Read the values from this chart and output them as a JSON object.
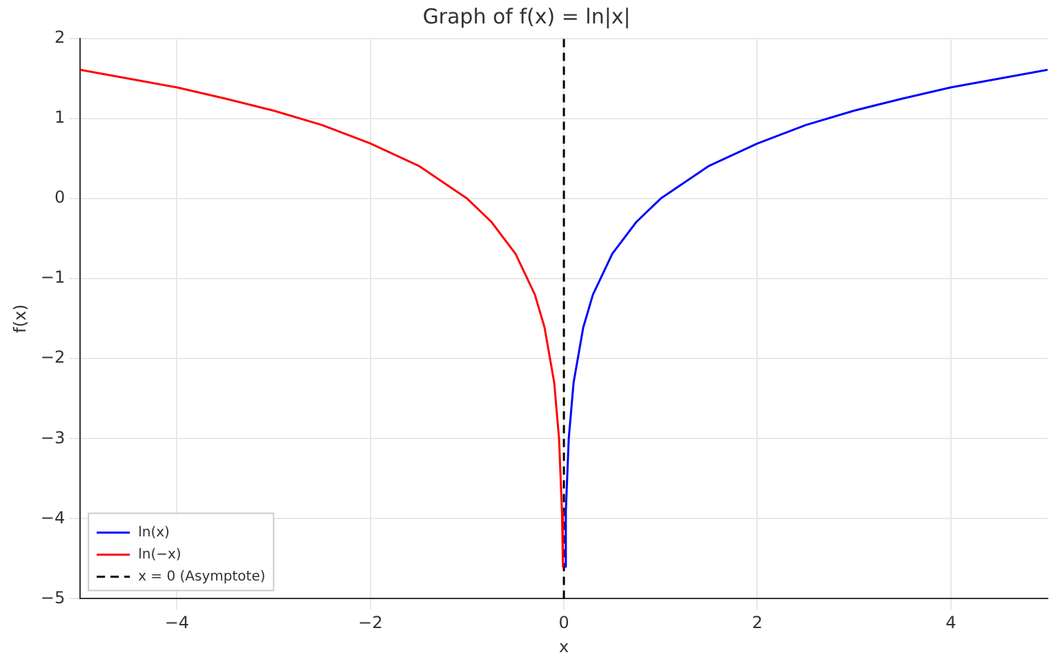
{
  "chart_data": {
    "type": "line",
    "title": "Graph of f(x) = ln|x|",
    "xlabel": "x",
    "ylabel": "f(x)",
    "xlim": [
      -5,
      5
    ],
    "xticks": [
      -4,
      -2,
      0,
      2,
      4
    ],
    "ylim": [
      -5,
      2
    ],
    "yticks": [
      -5,
      -4,
      -3,
      -2,
      -1,
      0,
      1,
      2
    ],
    "grid": true,
    "legend": "bottom left",
    "marker": "none",
    "line_style": "solid",
    "series": [
      {
        "name": "ln(x)",
        "color": "#0000ff",
        "x": [
          0.01,
          0.02,
          0.05,
          0.1,
          0.2,
          0.3,
          0.5,
          0.75,
          1,
          1.5,
          2,
          2.5,
          3,
          3.5,
          4,
          4.5,
          5
        ],
        "values": [
          -4.6,
          -3.91,
          -3.0,
          -2.3,
          -1.61,
          -1.2,
          -0.69,
          -0.29,
          0,
          0.41,
          0.69,
          0.92,
          1.1,
          1.25,
          1.39,
          1.5,
          1.61
        ]
      },
      {
        "name": "ln(−x)",
        "color": "#ff0000",
        "x": [
          -5,
          -4.5,
          -4,
          -3.5,
          -3,
          -2.5,
          -2,
          -1.5,
          -1,
          -0.75,
          -0.5,
          -0.3,
          -0.2,
          -0.1,
          -0.05,
          -0.02,
          -0.01
        ],
        "values": [
          1.61,
          1.5,
          1.39,
          1.25,
          1.1,
          0.92,
          0.69,
          0.41,
          0,
          -0.29,
          -0.69,
          -1.2,
          -1.61,
          -2.3,
          -3.0,
          -3.91,
          -4.6
        ]
      },
      {
        "name": "x = 0 (Asymptote)",
        "color": "#000000",
        "line_style": "dashed",
        "x": [
          0,
          0
        ],
        "values": [
          -5,
          2
        ]
      }
    ]
  }
}
